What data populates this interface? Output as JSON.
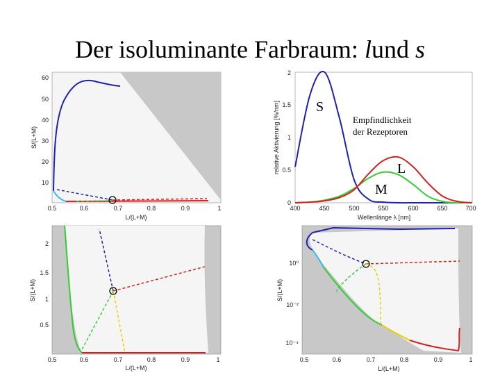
{
  "slide": {
    "title_main": "Der isoluminante Farbraum:",
    "title_l": "l",
    "title_und": "und",
    "title_s": "s"
  },
  "colors": {
    "blue": "#1f1fb0",
    "red": "#d42020",
    "green": "#33cc33",
    "yellow": "#e8d000",
    "cyan": "#33bbee",
    "gray": "#c8c8c8",
    "field": "#f5f5f5"
  },
  "panel_tl": {
    "ylabel": "S/(L+M)",
    "xlabel": "L/(L+M)",
    "xticks": [
      "0.5",
      "0.6",
      "0.7",
      "0.8",
      "0.9",
      "1"
    ],
    "yticks": [
      "10",
      "20",
      "30",
      "40",
      "50",
      "60"
    ]
  },
  "panel_tr": {
    "ylabel": "relative Aktivierung [%/nm]",
    "xlabel": "Wellenlänge λ [nm]",
    "xticks": [
      "400",
      "450",
      "500",
      "550",
      "600",
      "650",
      "700"
    ],
    "yticks": [
      "0",
      "0.5",
      "1",
      "1.5",
      "2"
    ],
    "annotation_line1": "Empfindlichkeit",
    "annotation_line2": "der Rezeptoren",
    "label_s": "S",
    "label_l": "L",
    "label_m": "M"
  },
  "panel_bl": {
    "ylabel": "S/(L+M)",
    "xlabel": "L/(L+M)",
    "xticks": [
      "0.5",
      "0.6",
      "0.7",
      "0.8",
      "0.9",
      "1"
    ],
    "yticks": [
      "0.5",
      "1",
      "1.5",
      "2"
    ]
  },
  "panel_br": {
    "ylabel": "S/(L+M)",
    "xlabel": "L/(L+M)",
    "xticks": [
      "0.5",
      "0.6",
      "0.7",
      "0.8",
      "0.9",
      "1"
    ],
    "yticks": [
      "10⁰",
      "10⁻²",
      "10⁻⁴"
    ]
  },
  "chart_data": [
    {
      "type": "line",
      "title": "",
      "xlabel": "Wellenlänge λ [nm]",
      "ylabel": "relative Aktivierung [%/nm]",
      "xlim": [
        400,
        700
      ],
      "ylim": [
        0,
        2
      ],
      "x": [
        400,
        425,
        450,
        475,
        500,
        525,
        550,
        575,
        600,
        625,
        650,
        675,
        700
      ],
      "series": [
        {
          "name": "S",
          "values": [
            0.55,
            1.65,
            2.0,
            1.3,
            0.35,
            0.05,
            0.01,
            0,
            0,
            0,
            0,
            0,
            0
          ]
        },
        {
          "name": "M",
          "values": [
            0,
            0.01,
            0.04,
            0.1,
            0.22,
            0.38,
            0.47,
            0.43,
            0.28,
            0.1,
            0.02,
            0.0,
            0
          ]
        },
        {
          "name": "L",
          "values": [
            0,
            0.01,
            0.03,
            0.08,
            0.2,
            0.45,
            0.65,
            0.7,
            0.55,
            0.3,
            0.1,
            0.02,
            0.0
          ]
        }
      ]
    }
  ]
}
